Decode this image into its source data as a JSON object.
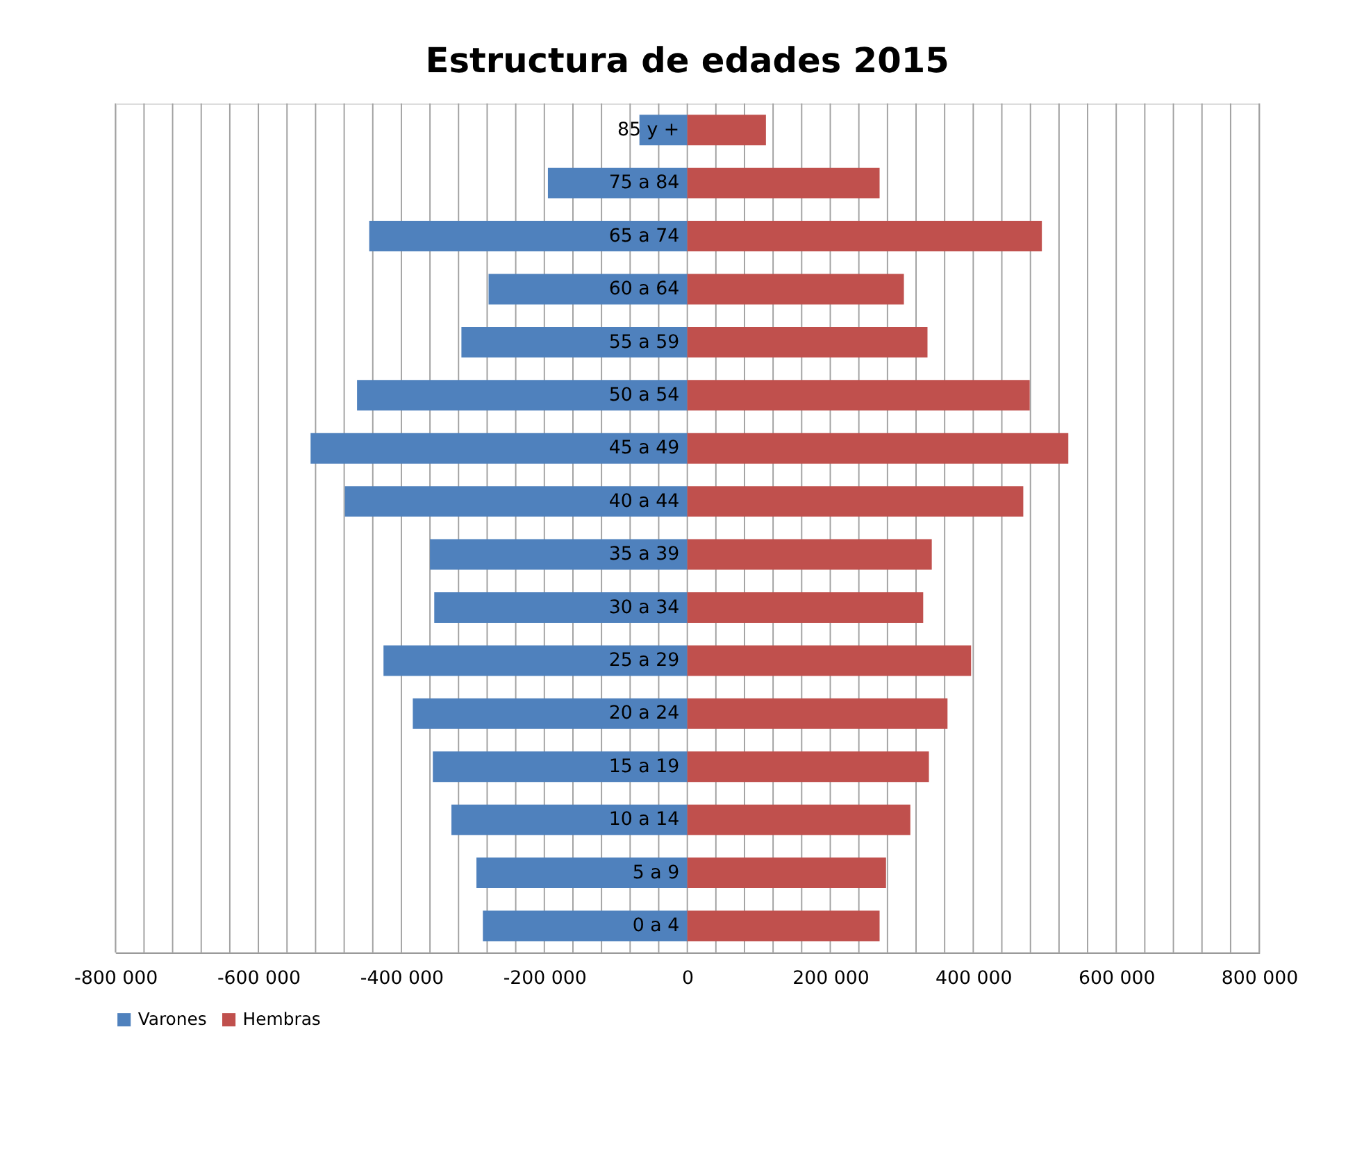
{
  "chart_data": {
    "type": "bar",
    "orientation": "horizontal",
    "title": "Estructura de edades 2015",
    "categories": [
      "85 y +",
      "75 a 84",
      "65 a 74",
      "60 a 64",
      "55 a 59",
      "50 a 54",
      "45 a 49",
      "40 a 44",
      "35 a 39",
      "30 a 34",
      "25 a 29",
      "20 a 24",
      "15 a 19",
      "10 a 14",
      "5 a 9",
      "0 a 4"
    ],
    "series": [
      {
        "name": "Varones",
        "color": "#4f81bd",
        "values": [
          -67000,
          -195000,
          -445000,
          -278000,
          -316000,
          -462000,
          -527000,
          -479000,
          -360000,
          -354000,
          -425000,
          -384000,
          -356000,
          -330000,
          -295000,
          -286000
        ]
      },
      {
        "name": "Hembras",
        "color": "#c0504d",
        "values": [
          110000,
          269000,
          496000,
          303000,
          336000,
          479000,
          533000,
          470000,
          342000,
          330000,
          397000,
          364000,
          338000,
          312000,
          278000,
          269000
        ]
      }
    ],
    "xlim": [
      -800000,
      800000
    ],
    "xticks": [
      {
        "value": -800000,
        "label": "-800 000"
      },
      {
        "value": -760000,
        "label": null
      },
      {
        "value": -720000,
        "label": null
      },
      {
        "value": -680000,
        "label": null
      },
      {
        "value": -640000,
        "label": null
      },
      {
        "value": -600000,
        "label": "-600 000"
      },
      {
        "value": -560000,
        "label": null
      },
      {
        "value": -520000,
        "label": null
      },
      {
        "value": -480000,
        "label": null
      },
      {
        "value": -440000,
        "label": null
      },
      {
        "value": -400000,
        "label": "-400 000"
      },
      {
        "value": -360000,
        "label": null
      },
      {
        "value": -320000,
        "label": null
      },
      {
        "value": -280000,
        "label": null
      },
      {
        "value": -240000,
        "label": null
      },
      {
        "value": -200000,
        "label": "-200 000"
      },
      {
        "value": -160000,
        "label": null
      },
      {
        "value": -120000,
        "label": null
      },
      {
        "value": -80000,
        "label": null
      },
      {
        "value": -40000,
        "label": null
      },
      0,
      {
        "value": 40000,
        "label": null
      },
      {
        "value": 80000,
        "label": null
      },
      {
        "value": 120000,
        "label": null
      },
      {
        "value": 160000,
        "label": null
      },
      {
        "value": 200000,
        "label": "200 000"
      },
      {
        "value": 240000,
        "label": null
      },
      {
        "value": 280000,
        "label": null
      },
      {
        "value": 320000,
        "label": null
      },
      {
        "value": 360000,
        "label": null
      },
      {
        "value": 400000,
        "label": "400 000"
      },
      {
        "value": 440000,
        "label": null
      },
      {
        "value": 480000,
        "label": null
      },
      {
        "value": 520000,
        "label": null
      },
      {
        "value": 560000,
        "label": null
      },
      {
        "value": 600000,
        "label": "600 000"
      },
      {
        "value": 640000,
        "label": null
      },
      {
        "value": 680000,
        "label": null
      },
      {
        "value": 720000,
        "label": null
      },
      {
        "value": 760000,
        "label": null
      },
      {
        "value": 800000,
        "label": "800 000"
      }
    ],
    "grid": "x",
    "legend": "bottom",
    "stacked": true
  }
}
